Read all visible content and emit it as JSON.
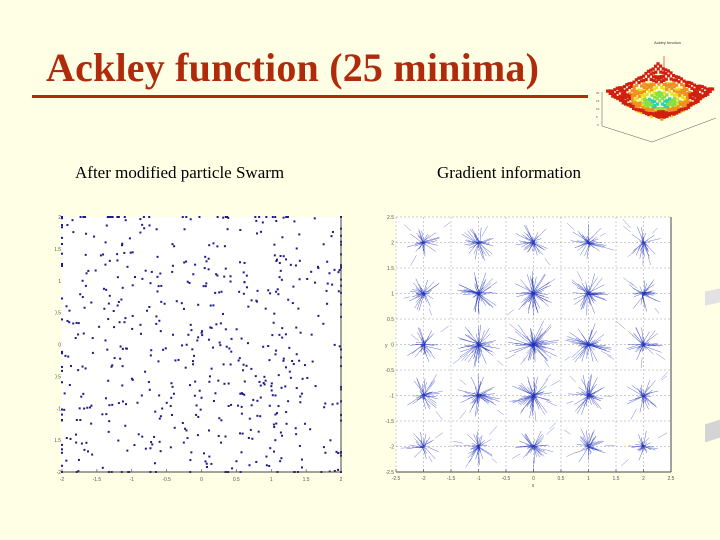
{
  "slide": {
    "title": "Ackley function (25 minima)",
    "left_caption": "After modified particle Swarm",
    "right_caption": "Gradient information",
    "thumbnail_title": "Ackley surface plot",
    "colors": {
      "background": "#FFFFE6",
      "title": "#B02A0C",
      "points": "#1A1A8C",
      "vectors": "#2233BB"
    }
  },
  "chart_data": [
    {
      "type": "scatter",
      "title": "After modified particle Swarm",
      "xlabel": "",
      "ylabel": "",
      "xlim": [
        -2,
        2
      ],
      "ylim": [
        -2,
        2
      ],
      "xticks": [
        "-2",
        "-1.5",
        "-1",
        "-0.5",
        "0",
        "0.5",
        "1",
        "1.5",
        "2"
      ],
      "yticks": [
        "2",
        "1.5",
        "1",
        "0.5",
        "0",
        "-0.5",
        "-1",
        "-1.5",
        "-2"
      ],
      "grid": false,
      "description": "~600 particles scattered across the domain, loosely clustered around the integer-lattice minima",
      "n_points": 600
    },
    {
      "type": "quiver",
      "title": "Gradient information",
      "xlabel": "x",
      "ylabel": "y",
      "xlim": [
        -2.5,
        2.5
      ],
      "ylim": [
        -2.5,
        2.5
      ],
      "xticks": [
        "-2.5",
        "-2",
        "-1.5",
        "-1",
        "-0.5",
        "0",
        "0.5",
        "1",
        "1.5",
        "2",
        "2.5"
      ],
      "yticks": [
        "2.5",
        "2",
        "1.5",
        "1",
        "0.5",
        "0",
        "-0.5",
        "-1",
        "-1.5",
        "-2",
        "-2.5"
      ],
      "grid": true,
      "minima": [
        [
          -2,
          2
        ],
        [
          -1,
          2
        ],
        [
          0,
          2
        ],
        [
          1,
          2
        ],
        [
          2,
          2
        ],
        [
          -2,
          1
        ],
        [
          -1,
          1
        ],
        [
          0,
          1
        ],
        [
          1,
          1
        ],
        [
          2,
          1
        ],
        [
          -2,
          0
        ],
        [
          -1,
          0
        ],
        [
          0,
          0
        ],
        [
          1,
          0
        ],
        [
          2,
          0
        ],
        [
          -2,
          -1
        ],
        [
          -1,
          -1
        ],
        [
          0,
          -1
        ],
        [
          1,
          -1
        ],
        [
          2,
          -1
        ],
        [
          -2,
          -2
        ],
        [
          -1,
          -2
        ],
        [
          0,
          -2
        ],
        [
          1,
          -2
        ],
        [
          2,
          -2
        ]
      ],
      "description": "Gradient vectors converge radially into 25 star-shaped clusters at the integer grid minima; the central minimum (0,0) is densest"
    }
  ]
}
